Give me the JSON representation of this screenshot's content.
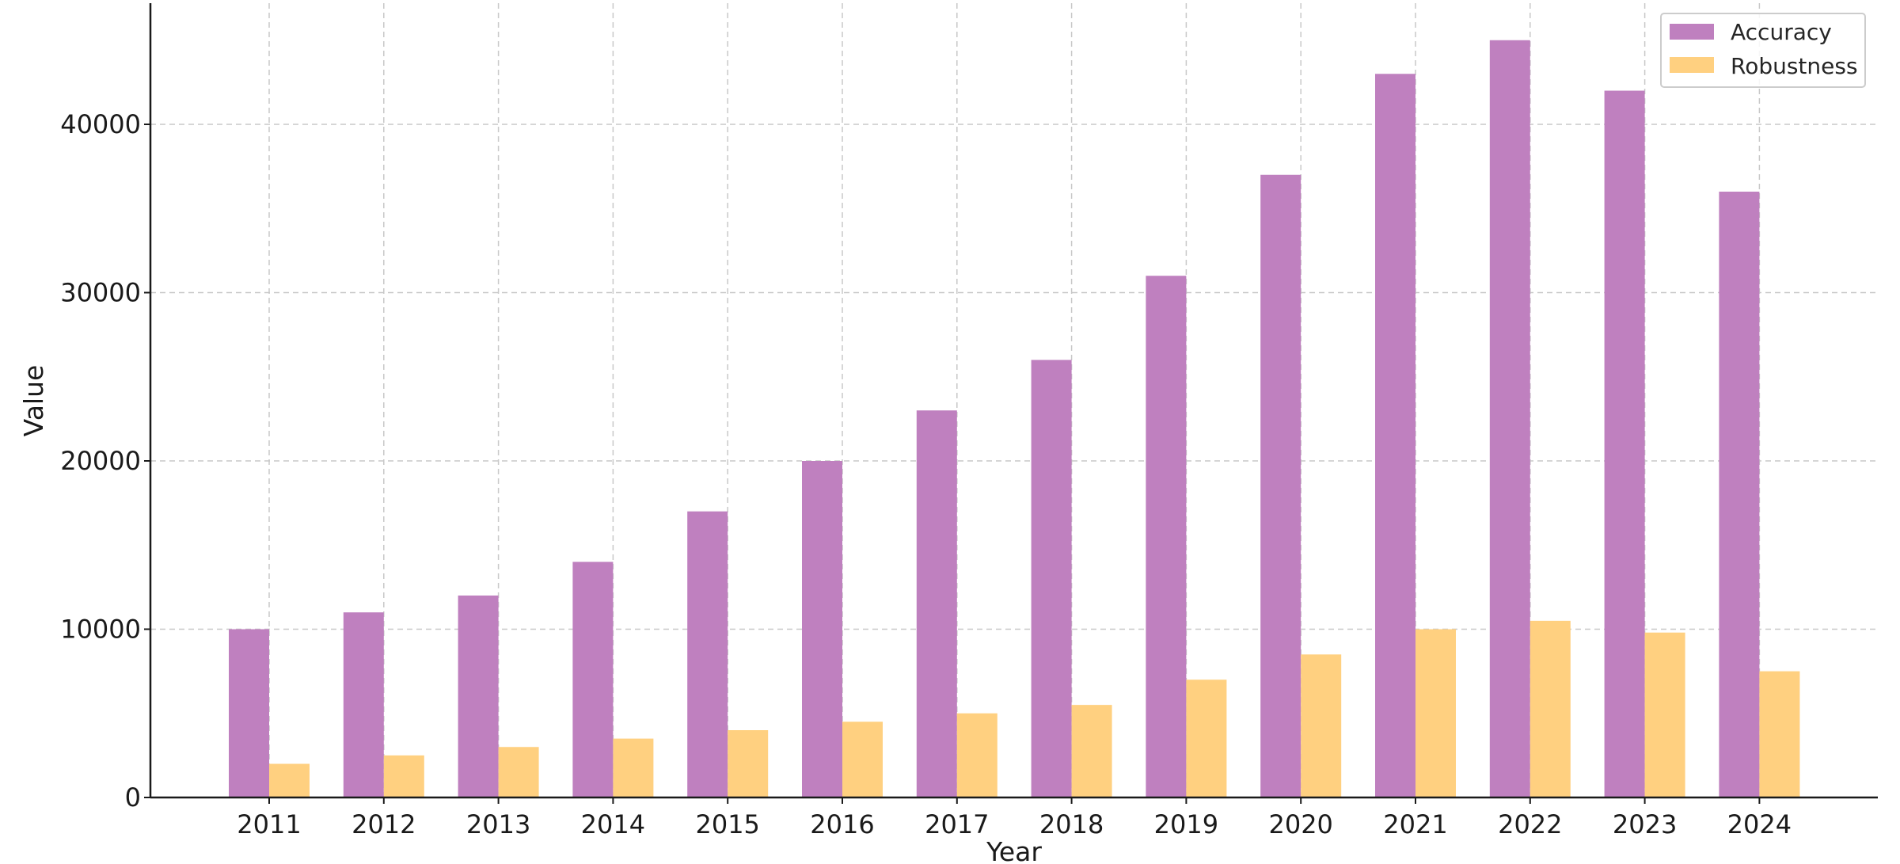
{
  "chart_data": {
    "type": "bar",
    "categories": [
      "2011",
      "2012",
      "2013",
      "2014",
      "2015",
      "2016",
      "2017",
      "2018",
      "2019",
      "2020",
      "2021",
      "2022",
      "2023",
      "2024"
    ],
    "series": [
      {
        "name": "Accuracy",
        "color": "#bf80bf",
        "values": [
          10000,
          11000,
          12000,
          14000,
          17000,
          20000,
          23000,
          26000,
          31000,
          37000,
          43000,
          45000,
          42000,
          36000
        ]
      },
      {
        "name": "Robustness",
        "color": "#ffd080",
        "values": [
          2000,
          2500,
          3000,
          3500,
          4000,
          4500,
          5000,
          5500,
          7000,
          8500,
          10000,
          10500,
          9800,
          7500
        ]
      }
    ],
    "title": "",
    "xlabel": "Year",
    "ylabel": "Value",
    "ylim": [
      0,
      47200
    ],
    "yticks": [
      0,
      10000,
      20000,
      30000,
      40000
    ],
    "grid": true,
    "legend_position": "top-right"
  }
}
